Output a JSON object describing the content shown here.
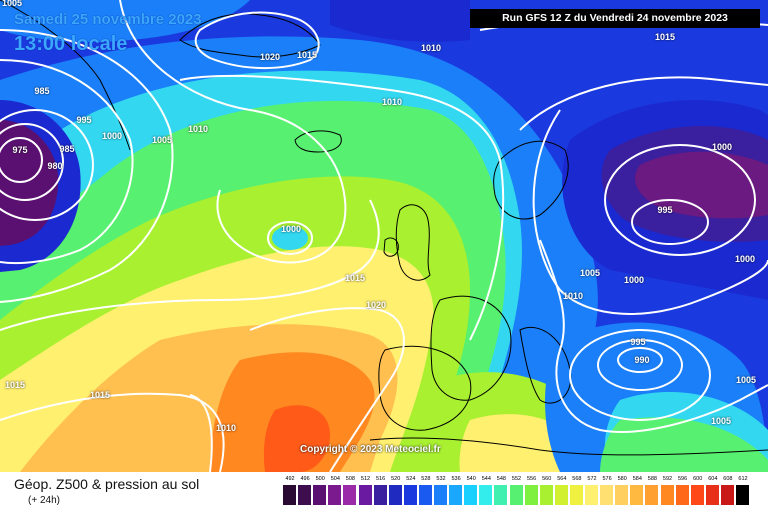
{
  "header": {
    "date": "Samedi 25 novembre 2023",
    "time": "13:00 locale",
    "run": "Run GFS 12 Z du Vendredi 24 novembre 2023"
  },
  "copyright": "Copyright © 2023 Meteociel.fr",
  "footer": {
    "title": "Géop. Z500 & pression au sol",
    "subtitle": "(+ 24h)"
  },
  "isobar_labels": [
    "1005",
    "985",
    "975",
    "980",
    "985",
    "995",
    "1000",
    "1005",
    "1010",
    "1020",
    "1015",
    "1010",
    "1010",
    "1015",
    "1000",
    "1015",
    "1020",
    "1015",
    "1015",
    "1010",
    "1000",
    "995",
    "1005",
    "1000",
    "1010",
    "1000",
    "995",
    "990",
    "1005",
    "1005"
  ],
  "legend": {
    "values": [
      "492",
      "496",
      "500",
      "504",
      "508",
      "512",
      "516",
      "520",
      "524",
      "528",
      "532",
      "536",
      "540",
      "544",
      "548",
      "552",
      "556",
      "560",
      "564",
      "568",
      "572",
      "576",
      "580",
      "584",
      "588",
      "592",
      "596",
      "600",
      "604",
      "608",
      "612"
    ],
    "colors": [
      "#2a0a33",
      "#3d0d4d",
      "#5a1070",
      "#7a1a8e",
      "#9a2aa8",
      "#6a1aa0",
      "#3a1f9f",
      "#1f2ac0",
      "#1a3ae0",
      "#1a5af0",
      "#1a7ff8",
      "#1aa8ff",
      "#1ad0ff",
      "#33ecec",
      "#40f0b0",
      "#58f070",
      "#80f040",
      "#a8f030",
      "#d0f030",
      "#f0f040",
      "#fff070",
      "#ffe070",
      "#ffd060",
      "#ffb840",
      "#ffa030",
      "#ff8820",
      "#ff6818",
      "#ff4818",
      "#e83018",
      "#c81818",
      "#000000"
    ]
  },
  "colors": {
    "low_purple": "#7a1a8e",
    "deep_blue": "#1a2ad0",
    "mid_blue": "#1a7ff8",
    "cyan": "#33d8f0",
    "green": "#80f040",
    "yellow": "#fff070",
    "orange": "#ffa030",
    "red_orange": "#ff6818",
    "isobar": "#ffffff",
    "coast": "#000000"
  }
}
